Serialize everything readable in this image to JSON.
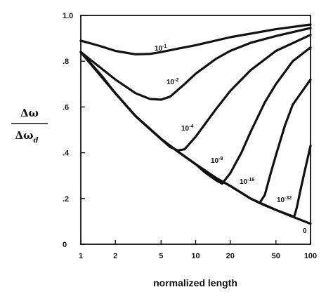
{
  "chart_data": {
    "type": "line",
    "title": "",
    "xlabel": "normalized length",
    "ylabel": {
      "numerator": "Δω",
      "denominator": "Δω",
      "denominator_subscript": "d"
    },
    "x_scale": "log",
    "xlim": [
      1,
      100
    ],
    "ylim": [
      0,
      1.0
    ],
    "x_ticks": [
      {
        "value": 1,
        "label": "1"
      },
      {
        "value": 2,
        "label": "2"
      },
      {
        "value": 5,
        "label": "5"
      },
      {
        "value": 10,
        "label": "10"
      },
      {
        "value": 20,
        "label": "20"
      },
      {
        "value": 50,
        "label": "50"
      },
      {
        "value": 100,
        "label": "100"
      }
    ],
    "y_ticks": [
      {
        "value": 0,
        "label": "0"
      },
      {
        "value": 0.2,
        "label": ".2"
      },
      {
        "value": 0.4,
        "label": ".4"
      },
      {
        "value": 0.6,
        "label": ".6"
      },
      {
        "value": 0.8,
        "label": ".8"
      },
      {
        "value": 1.0,
        "label": "1.0"
      }
    ],
    "grid": false,
    "series": [
      {
        "label_base": "10",
        "label_exp": "-1",
        "points": [
          [
            1,
            0.89
          ],
          [
            1.5,
            0.865
          ],
          [
            2,
            0.845
          ],
          [
            3,
            0.83
          ],
          [
            4,
            0.832
          ],
          [
            5,
            0.84
          ],
          [
            7,
            0.855
          ],
          [
            10,
            0.87
          ],
          [
            20,
            0.905
          ],
          [
            50,
            0.94
          ],
          [
            100,
            0.96
          ]
        ]
      },
      {
        "label_base": "10",
        "label_exp": "-2",
        "points": [
          [
            1,
            0.84
          ],
          [
            2,
            0.72
          ],
          [
            3,
            0.66
          ],
          [
            4,
            0.635
          ],
          [
            5,
            0.632
          ],
          [
            6,
            0.645
          ],
          [
            8,
            0.7
          ],
          [
            10,
            0.745
          ],
          [
            15,
            0.81
          ],
          [
            20,
            0.845
          ],
          [
            30,
            0.88
          ],
          [
            50,
            0.91
          ],
          [
            100,
            0.945
          ]
        ]
      },
      {
        "label_base": "10",
        "label_exp": "-4",
        "points": [
          [
            1,
            0.84
          ],
          [
            2,
            0.66
          ],
          [
            3,
            0.56
          ],
          [
            5,
            0.46
          ],
          [
            6,
            0.425
          ],
          [
            7,
            0.41
          ],
          [
            8,
            0.415
          ],
          [
            10,
            0.47
          ],
          [
            15,
            0.59
          ],
          [
            20,
            0.67
          ],
          [
            30,
            0.76
          ],
          [
            50,
            0.845
          ],
          [
            100,
            0.915
          ]
        ]
      },
      {
        "label_base": "10",
        "label_exp": "-8",
        "points": [
          [
            1,
            0.84
          ],
          [
            2,
            0.66
          ],
          [
            3,
            0.56
          ],
          [
            5,
            0.46
          ],
          [
            7,
            0.405
          ],
          [
            10,
            0.35
          ],
          [
            12,
            0.315
          ],
          [
            15,
            0.28
          ],
          [
            17,
            0.265
          ],
          [
            20,
            0.31
          ],
          [
            25,
            0.4
          ],
          [
            30,
            0.49
          ],
          [
            40,
            0.62
          ],
          [
            50,
            0.7
          ],
          [
            70,
            0.8
          ],
          [
            100,
            0.86
          ]
        ]
      },
      {
        "label_base": "10",
        "label_exp": "-16",
        "points": [
          [
            1,
            0.84
          ],
          [
            2,
            0.66
          ],
          [
            3,
            0.56
          ],
          [
            5,
            0.46
          ],
          [
            7,
            0.405
          ],
          [
            10,
            0.35
          ],
          [
            15,
            0.29
          ],
          [
            20,
            0.255
          ],
          [
            25,
            0.225
          ],
          [
            30,
            0.2
          ],
          [
            36,
            0.18
          ],
          [
            40,
            0.215
          ],
          [
            45,
            0.31
          ],
          [
            50,
            0.39
          ],
          [
            60,
            0.52
          ],
          [
            70,
            0.61
          ],
          [
            100,
            0.72
          ]
        ]
      },
      {
        "label_base": "10",
        "label_exp": "-32",
        "points": [
          [
            1,
            0.84
          ],
          [
            2,
            0.66
          ],
          [
            3,
            0.56
          ],
          [
            5,
            0.46
          ],
          [
            7,
            0.405
          ],
          [
            10,
            0.35
          ],
          [
            15,
            0.29
          ],
          [
            20,
            0.255
          ],
          [
            30,
            0.2
          ],
          [
            40,
            0.17
          ],
          [
            50,
            0.15
          ],
          [
            60,
            0.135
          ],
          [
            72,
            0.12
          ],
          [
            76,
            0.16
          ],
          [
            82,
            0.24
          ],
          [
            90,
            0.33
          ],
          [
            100,
            0.43
          ]
        ]
      },
      {
        "label_base": "0",
        "label_exp": "",
        "points": [
          [
            1,
            0.84
          ],
          [
            1.5,
            0.74
          ],
          [
            2,
            0.66
          ],
          [
            3,
            0.56
          ],
          [
            5,
            0.46
          ],
          [
            7,
            0.405
          ],
          [
            10,
            0.35
          ],
          [
            15,
            0.29
          ],
          [
            20,
            0.255
          ],
          [
            30,
            0.2
          ],
          [
            50,
            0.15
          ],
          [
            70,
            0.12
          ],
          [
            100,
            0.09
          ]
        ]
      }
    ]
  }
}
